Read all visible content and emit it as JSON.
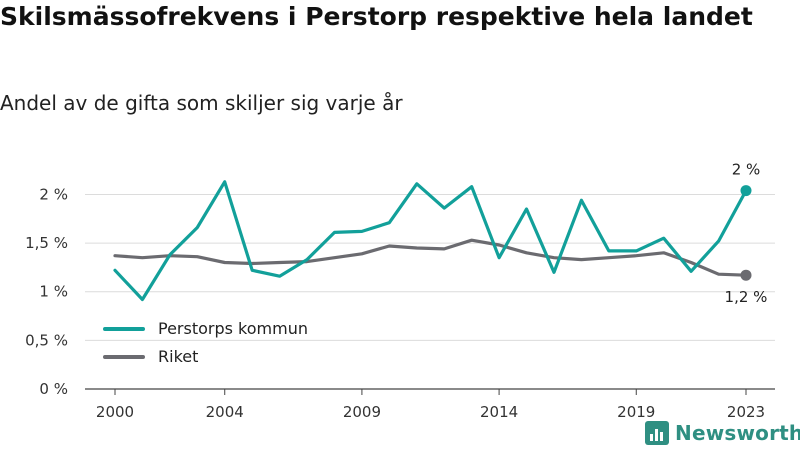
{
  "title": "Skilsmässofrekvens i Perstorp respektive hela landet",
  "subtitle": "Andel av de gifta som skiljer sig varje år",
  "brand": {
    "name": "Newsworthy",
    "icon": "bar-chart-logo-icon",
    "color": "#2f8f82"
  },
  "chart_data": {
    "type": "line",
    "x": [
      2000,
      2001,
      2002,
      2003,
      2004,
      2005,
      2006,
      2007,
      2008,
      2009,
      2010,
      2011,
      2012,
      2013,
      2014,
      2015,
      2016,
      2017,
      2018,
      2019,
      2020,
      2021,
      2022,
      2023
    ],
    "x_ticks": [
      2000,
      2004,
      2009,
      2014,
      2019,
      2023
    ],
    "ylim": [
      0,
      2.2
    ],
    "y_ticks": [
      0,
      0.5,
      1,
      1.5,
      2
    ],
    "y_tick_labels": [
      "0 %",
      "0,5 %",
      "1 %",
      "1,5 %",
      "2 %"
    ],
    "grid": true,
    "legend_position": "bottom-left",
    "series": [
      {
        "name": "Perstorps kommun",
        "color": "#12a09a",
        "values": [
          1.22,
          0.92,
          1.38,
          1.66,
          2.13,
          1.22,
          1.16,
          1.33,
          1.61,
          1.62,
          1.71,
          2.11,
          1.86,
          2.08,
          1.35,
          1.85,
          1.2,
          1.94,
          1.42,
          1.42,
          1.55,
          1.21,
          1.52,
          2.04
        ],
        "end_label": "2 %"
      },
      {
        "name": "Riket",
        "color": "#6b6b70",
        "values": [
          1.37,
          1.35,
          1.37,
          1.36,
          1.3,
          1.29,
          1.3,
          1.31,
          1.35,
          1.39,
          1.47,
          1.45,
          1.44,
          1.53,
          1.48,
          1.4,
          1.35,
          1.33,
          1.35,
          1.37,
          1.4,
          1.3,
          1.18,
          1.17
        ],
        "end_label": "1,2 %"
      }
    ]
  }
}
